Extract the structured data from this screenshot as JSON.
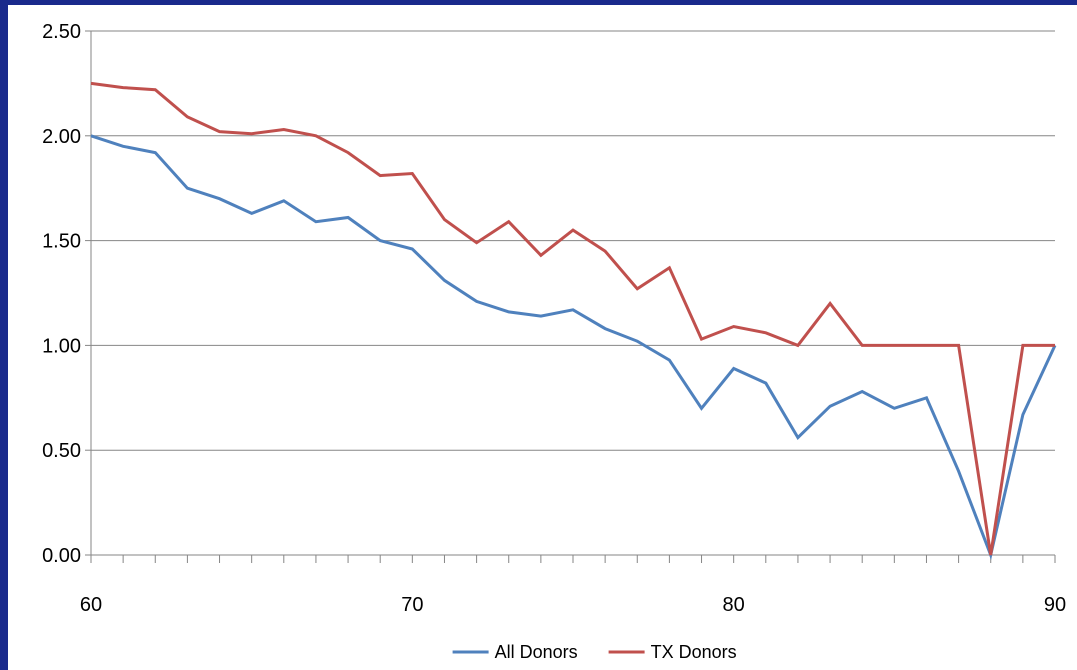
{
  "chart_data": {
    "type": "line",
    "title": "",
    "xlabel": "",
    "ylabel": "",
    "xlim": [
      60,
      90
    ],
    "ylim": [
      0,
      2.5
    ],
    "x_ticks": [
      "60",
      "70",
      "80",
      "90"
    ],
    "y_ticks": [
      "0.00",
      "0.50",
      "1.00",
      "1.50",
      "2.00",
      "2.50"
    ],
    "grid": "horizontal",
    "legend_position": "bottom",
    "x": [
      60,
      61,
      62,
      63,
      64,
      65,
      66,
      67,
      68,
      69,
      70,
      71,
      72,
      73,
      74,
      75,
      76,
      77,
      78,
      79,
      80,
      81,
      82,
      83,
      84,
      85,
      86,
      87,
      88,
      89,
      90
    ],
    "series": [
      {
        "name": "All Donors",
        "color": "#4f81bd",
        "values": [
          2.0,
          1.95,
          1.92,
          1.75,
          1.7,
          1.63,
          1.69,
          1.59,
          1.61,
          1.5,
          1.46,
          1.31,
          1.21,
          1.16,
          1.14,
          1.17,
          1.08,
          1.02,
          0.93,
          0.7,
          0.89,
          0.82,
          0.56,
          0.71,
          0.78,
          0.7,
          0.75,
          0.4,
          0.0,
          0.67,
          1.0
        ]
      },
      {
        "name": "TX Donors",
        "color": "#c0504d",
        "values": [
          2.25,
          2.23,
          2.22,
          2.09,
          2.02,
          2.01,
          2.03,
          2.0,
          1.92,
          1.81,
          1.82,
          1.6,
          1.49,
          1.59,
          1.43,
          1.55,
          1.45,
          1.27,
          1.37,
          1.03,
          1.09,
          1.06,
          1.0,
          1.2,
          1.0,
          1.0,
          1.0,
          1.0,
          0.0,
          1.0,
          1.0
        ]
      }
    ]
  }
}
